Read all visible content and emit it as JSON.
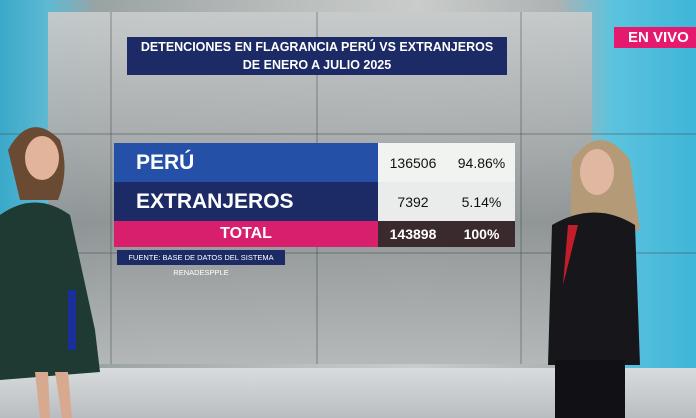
{
  "header": {
    "title": [
      "DETENCIONES EN FLAGRANCIA PERÚ VS EXTRANJEROS",
      "DE ENERO A JULIO 2025"
    ],
    "live": "EN VIVO"
  },
  "table": {
    "rows": [
      [
        "PERÚ",
        "136506",
        "94.86%"
      ],
      [
        "EXTRANJEROS",
        "7392",
        "5.14%"
      ],
      [
        "TOTAL",
        "143898",
        "100%"
      ]
    ]
  },
  "source": "FUENTE: BASE DE DATOS DEL SISTEMA RENADESPPLE"
}
